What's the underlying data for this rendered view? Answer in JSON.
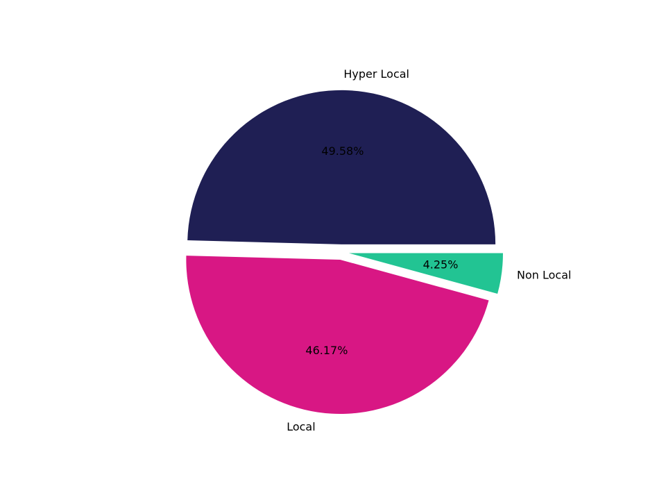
{
  "chart_data": {
    "type": "pie",
    "categories": [
      "Hyper Local",
      "Local",
      "Non Local"
    ],
    "values": [
      49.58,
      46.17,
      4.25
    ],
    "value_labels": [
      "49.58%",
      "46.17%",
      "4.25%"
    ],
    "colors": [
      "#1f1f54",
      "#d81784",
      "#22c493"
    ]
  }
}
